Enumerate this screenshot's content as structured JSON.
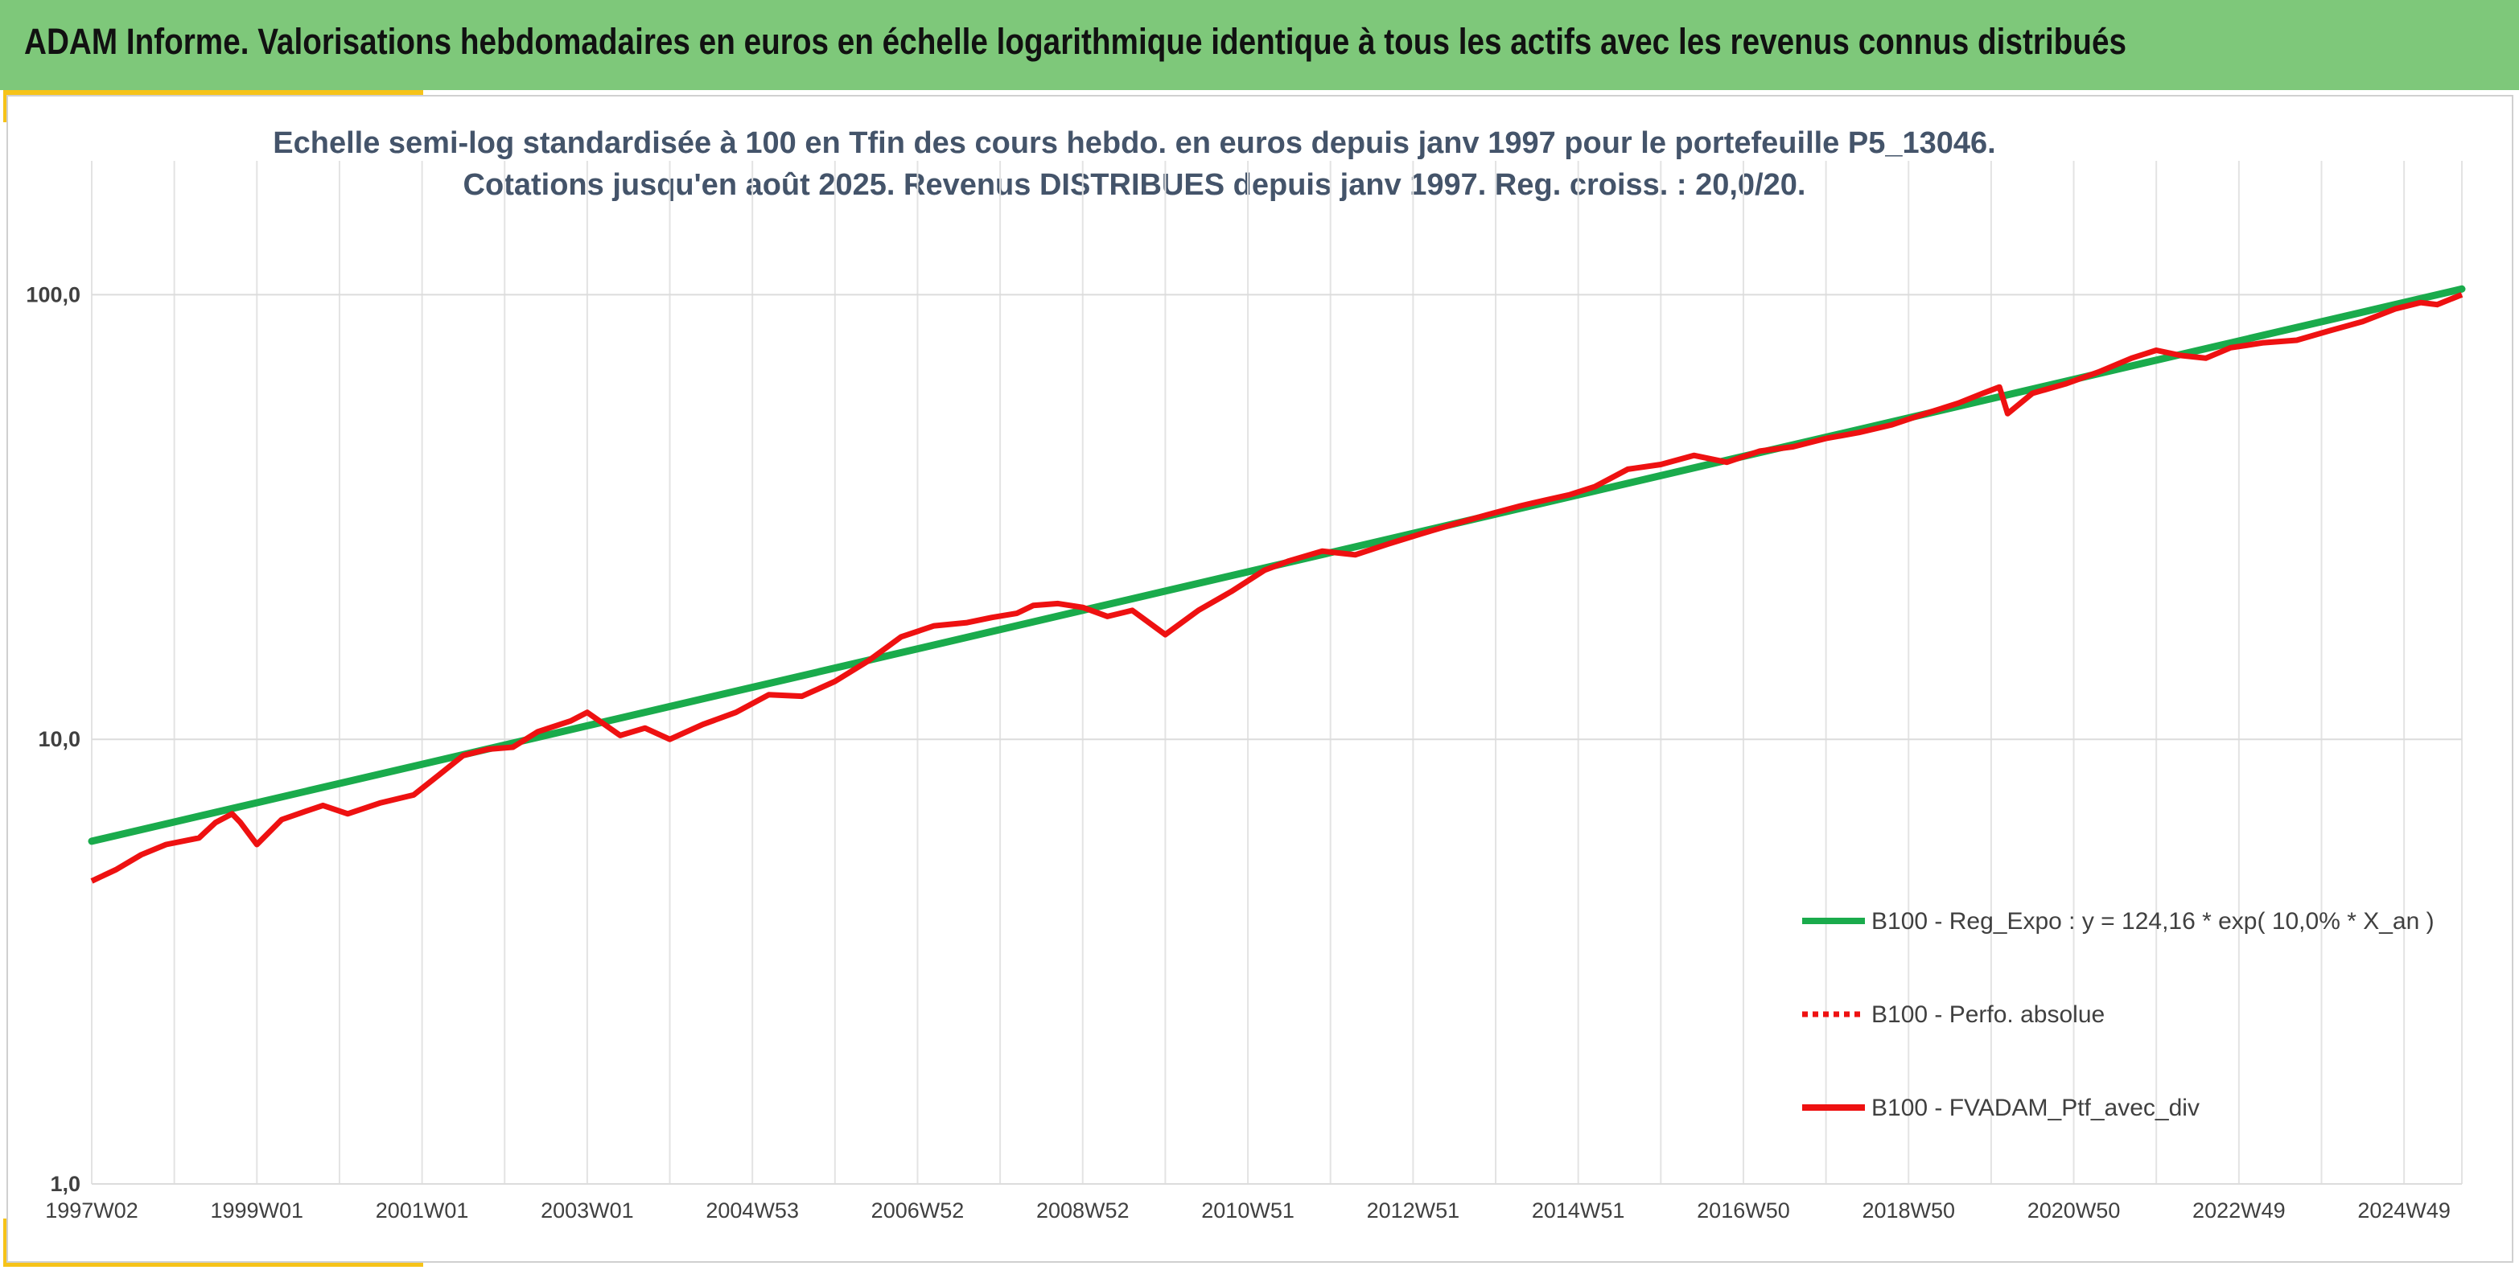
{
  "banner": {
    "title": "ADAM Informe. Valorisations hebdomadaires en euros en échelle logarithmique identique à tous les actifs avec les revenus connus distribués"
  },
  "colors": {
    "banner_bg": "#7ec87a",
    "accent": "#f6c319",
    "regression": "#1aab4c",
    "portfolio": "#ee1111",
    "title_text": "#44546a"
  },
  "chart_data": {
    "type": "line",
    "title_line1": "Echelle semi-log standardisée à 100 en Tfin des cours hebdo. en euros depuis janv 1997 pour le portefeuille P5_13046.",
    "title_line2": "Cotations jusqu'en août 2025. Revenus DISTRIBUES depuis janv 1997. Reg. croiss. : 20,0/20.",
    "y_scale": "log",
    "ylim": [
      1,
      200
    ],
    "y_ticks": [
      1,
      10,
      100
    ],
    "y_tick_labels": [
      "1,0",
      "10,0",
      "100,0"
    ],
    "x_range": [
      1997.0,
      2025.7
    ],
    "x_tick_labels": [
      "1997W02",
      "1999W01",
      "2001W01",
      "2003W01",
      "2004W53",
      "2006W52",
      "2008W52",
      "2010W51",
      "2012W51",
      "2014W51",
      "2016W50",
      "2018W50",
      "2020W50",
      "2022W49",
      "2024W49"
    ],
    "x_tick_positions": [
      1997.0,
      1999.0,
      2001.0,
      2003.0,
      2005.0,
      2007.0,
      2009.0,
      2011.0,
      2013.0,
      2015.0,
      2017.0,
      2019.0,
      2021.0,
      2023.0,
      2025.0
    ],
    "vertical_grid_years": [
      1997,
      1998,
      1999,
      2000,
      2001,
      2002,
      2003,
      2004,
      2005,
      2006,
      2007,
      2008,
      2009,
      2010,
      2011,
      2012,
      2013,
      2014,
      2015,
      2016,
      2017,
      2018,
      2019,
      2020,
      2021,
      2022,
      2023,
      2024,
      2025,
      2025.7
    ],
    "grid": true,
    "legend_position": "right",
    "series": [
      {
        "name": "B100 - Reg_Expo : y = 124,16 * exp( 10,0% *  X_an )",
        "color": "#1aab4c",
        "style": "solid",
        "x": [
          1997.0,
          2025.7
        ],
        "y": [
          5.9,
          103
        ]
      },
      {
        "name": "B100 - Perfo. absolue",
        "color": "#ee1111",
        "style": "dotted",
        "x": [],
        "y": []
      },
      {
        "name": "B100 - FVADAM_Ptf_avec_div",
        "color": "#ee1111",
        "style": "solid",
        "x": [
          1997.0,
          1997.3,
          1997.6,
          1997.9,
          1998.3,
          1998.5,
          1998.7,
          1998.8,
          1999.0,
          1999.3,
          1999.6,
          1999.8,
          2000.1,
          2000.5,
          2000.9,
          2001.2,
          2001.5,
          2001.8,
          2002.1,
          2002.4,
          2002.8,
          2003.0,
          2003.4,
          2003.7,
          2004.0,
          2004.4,
          2004.8,
          2005.2,
          2005.6,
          2006.0,
          2006.4,
          2006.8,
          2007.2,
          2007.6,
          2007.9,
          2008.2,
          2008.4,
          2008.7,
          2009.0,
          2009.3,
          2009.6,
          2010.0,
          2010.4,
          2010.8,
          2011.2,
          2011.5,
          2011.9,
          2012.3,
          2012.7,
          2013.1,
          2013.5,
          2013.9,
          2014.3,
          2014.6,
          2014.9,
          2015.2,
          2015.6,
          2016.0,
          2016.4,
          2016.8,
          2017.2,
          2017.6,
          2018.0,
          2018.4,
          2018.8,
          2019.2,
          2019.6,
          2019.9,
          2020.1,
          2020.2,
          2020.5,
          2020.9,
          2021.3,
          2021.7,
          2022.0,
          2022.3,
          2022.6,
          2022.9,
          2023.3,
          2023.7,
          2024.1,
          2024.5,
          2024.9,
          2025.2,
          2025.4,
          2025.7
        ],
        "y": [
          4.8,
          5.1,
          5.5,
          5.8,
          6.0,
          6.5,
          6.8,
          6.5,
          5.8,
          6.6,
          6.9,
          7.1,
          6.8,
          7.2,
          7.5,
          8.3,
          9.2,
          9.5,
          9.6,
          10.4,
          11.0,
          11.5,
          10.2,
          10.6,
          10.0,
          10.8,
          11.5,
          12.6,
          12.5,
          13.5,
          15.0,
          17.0,
          18.0,
          18.3,
          18.8,
          19.2,
          20.0,
          20.2,
          19.8,
          18.9,
          19.5,
          17.2,
          19.5,
          21.5,
          24.0,
          25.2,
          26.5,
          26.0,
          27.5,
          29.0,
          30.5,
          32.0,
          33.5,
          34.5,
          35.5,
          37.0,
          40.5,
          41.5,
          43.5,
          42.0,
          44.5,
          45.5,
          47.5,
          49.0,
          51.0,
          54.0,
          57.0,
          60.0,
          62.0,
          54.0,
          60.0,
          63.0,
          67.0,
          72.0,
          75.0,
          73.0,
          72.0,
          76.0,
          78.0,
          79.0,
          83.0,
          87.0,
          93.0,
          96.0,
          95.0,
          100.0
        ]
      }
    ]
  }
}
